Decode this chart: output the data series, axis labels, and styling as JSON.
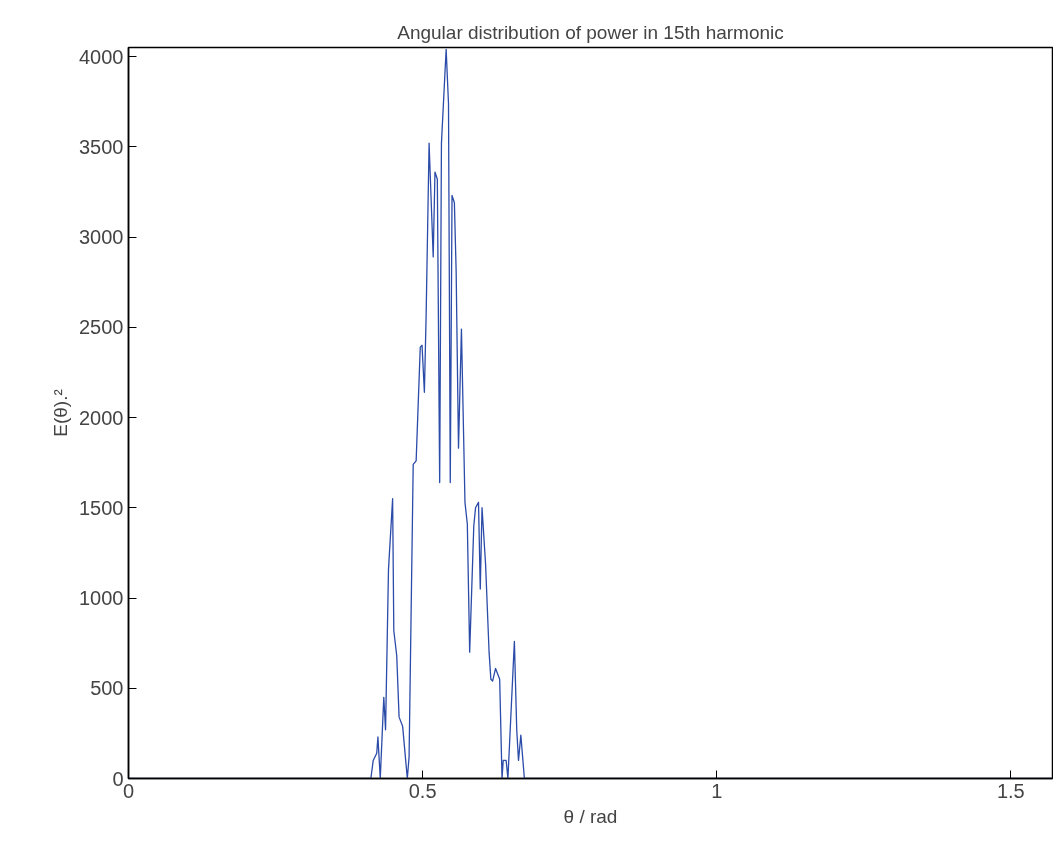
{
  "chart_data": {
    "type": "line",
    "title": "Angular distribution of power in 15th harmonic",
    "xlabel": "θ / rad",
    "ylabel": "E(θ).²",
    "xlim": [
      0,
      1.5708
    ],
    "ylim": [
      0,
      4050
    ],
    "xticks": [
      0,
      0.5,
      1,
      1.5
    ],
    "yticks": [
      0,
      500,
      1000,
      1500,
      2000,
      2500,
      3000,
      3500,
      4000
    ],
    "grid": false,
    "marker": "none",
    "line_style": "solid",
    "series": [
      {
        "color": "#2b4ba8",
        "x": [
          0,
          0.412,
          0.416,
          0.422,
          0.424,
          0.428,
          0.434,
          0.437,
          0.442,
          0.449,
          0.451,
          0.456,
          0.46,
          0.466,
          0.474,
          0.477,
          0.484,
          0.489,
          0.496,
          0.499,
          0.503,
          0.506,
          0.511,
          0.518,
          0.521,
          0.525,
          0.529,
          0.532,
          0.54,
          0.544,
          0.547,
          0.55,
          0.554,
          0.557,
          0.561,
          0.566,
          0.572,
          0.576,
          0.58,
          0.587,
          0.59,
          0.595,
          0.598,
          0.601,
          0.607,
          0.613,
          0.616,
          0.619,
          0.624,
          0.631,
          0.635,
          0.637,
          0.642,
          0.645,
          0.656,
          0.66,
          0.663,
          0.667,
          0.673,
          1.5708
        ],
        "values": [
          0,
          0,
          100,
          140,
          230,
          0,
          450,
          270,
          1160,
          1550,
          820,
          680,
          340,
          290,
          0,
          120,
          1740,
          1760,
          2390,
          2400,
          2140,
          2570,
          3520,
          2890,
          3360,
          3320,
          1640,
          3520,
          4040,
          3740,
          1640,
          3230,
          3190,
          2810,
          1830,
          2490,
          1530,
          1410,
          700,
          1400,
          1500,
          1530,
          1050,
          1500,
          1190,
          700,
          550,
          540,
          610,
          550,
          0,
          100,
          100,
          0,
          760,
          270,
          100,
          240,
          0,
          0
        ]
      }
    ]
  }
}
